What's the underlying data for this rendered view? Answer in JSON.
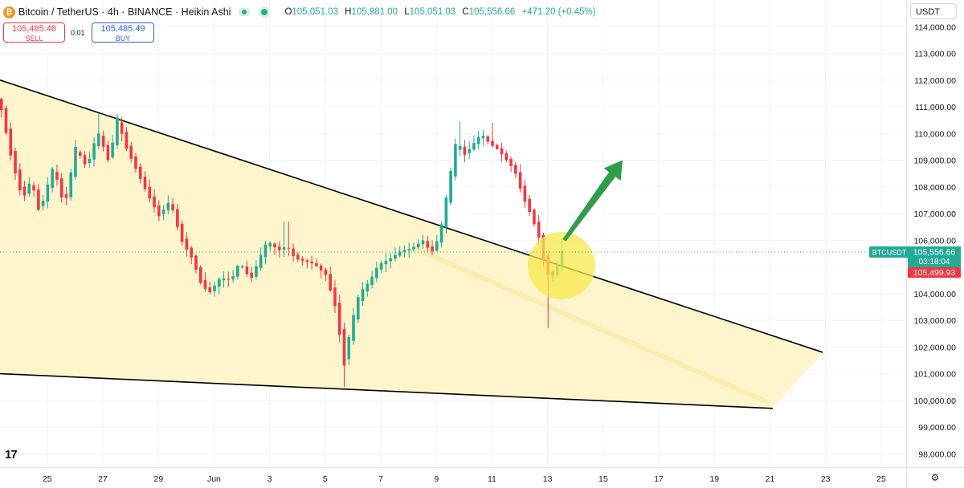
{
  "header": {
    "title": "Bitcoin / TetherUS · 4h · BINANCE · Heikin Ashi",
    "logo_glyph": "₿",
    "o_label": "O",
    "o_value": "105,051.03",
    "h_label": "H",
    "h_value": "105,981.00",
    "l_label": "L",
    "l_value": "105,051.03",
    "c_label": "C",
    "c_value": "105,556.66",
    "change": "+471.20 (+0.45%)"
  },
  "trade": {
    "sell_price": "105,485.48",
    "sell_label": "SELL",
    "spread": "0.01",
    "buy_price": "105,485.49",
    "buy_label": "BUY"
  },
  "currency_button": "USDT",
  "tv_logo_text": "17",
  "settings_icon": "gear-icon",
  "colors": {
    "up": "#22ab94",
    "down": "#f23645",
    "wedge_fill": "#fff3c4",
    "highlight": "#f7e84a",
    "arrow": "#2e9e4a",
    "trendline": "#000000"
  },
  "chart_data": {
    "type": "candlestick",
    "symbol": "BTCUSDT",
    "interval": "4h",
    "ylim": [
      97500,
      115000
    ],
    "y_ticks": [
      98000,
      99000,
      100000,
      101000,
      102000,
      103000,
      104000,
      105000,
      106000,
      107000,
      108000,
      109000,
      110000,
      111000,
      112000,
      113000,
      114000
    ],
    "y_tick_labels": [
      "98,000.00",
      "99,000.00",
      "100,000.00",
      "101,000.00",
      "102,000.00",
      "103,000.00",
      "104,000.00",
      "105,000.00",
      "106,000.00",
      "107,000.00",
      "108,000.00",
      "109,000.00",
      "110,000.00",
      "111,000.00",
      "112,000.00",
      "113,000.00",
      "114,000.00"
    ],
    "x_range_days": [
      23.3,
      25.9
    ],
    "x_ticks": [
      {
        "day": 25,
        "label": "25"
      },
      {
        "day": 27,
        "label": "27"
      },
      {
        "day": 29,
        "label": "29"
      },
      {
        "day": 31,
        "label": "Jun"
      },
      {
        "day": 33,
        "label": "3"
      },
      {
        "day": 35,
        "label": "5"
      },
      {
        "day": 37,
        "label": "7"
      },
      {
        "day": 39,
        "label": "9"
      },
      {
        "day": 41,
        "label": "11"
      },
      {
        "day": 43,
        "label": "13"
      },
      {
        "day": 45,
        "label": "15"
      },
      {
        "day": 47,
        "label": "17"
      },
      {
        "day": 49,
        "label": "19"
      },
      {
        "day": 51,
        "label": "21"
      },
      {
        "day": 53,
        "label": "23"
      },
      {
        "day": 55,
        "label": "25"
      }
    ],
    "keypoints": [
      [
        23.35,
        111300
      ],
      [
        23.8,
        109000
      ],
      [
        24.2,
        107500
      ],
      [
        24.5,
        108300
      ],
      [
        24.8,
        107000
      ],
      [
        25.3,
        108800
      ],
      [
        25.7,
        107200
      ],
      [
        26.1,
        109500
      ],
      [
        26.5,
        108700
      ],
      [
        26.9,
        110100
      ],
      [
        27.3,
        108900
      ],
      [
        27.6,
        110600
      ],
      [
        27.9,
        109500
      ],
      [
        28.3,
        108600
      ],
      [
        28.7,
        107700
      ],
      [
        29.1,
        106900
      ],
      [
        29.5,
        107500
      ],
      [
        29.9,
        106000
      ],
      [
        30.3,
        105300
      ],
      [
        30.6,
        104400
      ],
      [
        30.9,
        104000
      ],
      [
        31.3,
        104600
      ],
      [
        31.7,
        104500
      ],
      [
        32.0,
        105200
      ],
      [
        32.4,
        104500
      ],
      [
        32.7,
        105300
      ],
      [
        33.0,
        106000
      ],
      [
        33.4,
        105600
      ],
      [
        33.7,
        105800
      ],
      [
        34.0,
        105300
      ],
      [
        34.4,
        105200
      ],
      [
        34.7,
        105100
      ],
      [
        35.1,
        104700
      ],
      [
        35.5,
        103300
      ],
      [
        35.75,
        101200
      ],
      [
        36.0,
        102800
      ],
      [
        36.3,
        104000
      ],
      [
        36.7,
        104500
      ],
      [
        37.0,
        105100
      ],
      [
        37.4,
        105300
      ],
      [
        37.8,
        105600
      ],
      [
        38.2,
        105700
      ],
      [
        38.6,
        106000
      ],
      [
        38.9,
        105500
      ],
      [
        39.2,
        106200
      ],
      [
        39.5,
        108000
      ],
      [
        39.8,
        109800
      ],
      [
        40.1,
        109200
      ],
      [
        40.4,
        109600
      ],
      [
        40.7,
        110000
      ],
      [
        41.0,
        109600
      ],
      [
        41.3,
        109400
      ],
      [
        41.6,
        109000
      ],
      [
        41.9,
        108600
      ],
      [
        42.2,
        107600
      ],
      [
        42.5,
        106900
      ],
      [
        42.8,
        106000
      ],
      [
        43.0,
        104900
      ],
      [
        43.2,
        104500
      ],
      [
        43.4,
        105000
      ],
      [
        43.6,
        105600
      ]
    ],
    "wicks": [
      {
        "day": 26.9,
        "high": 110750
      },
      {
        "day": 33.6,
        "high": 106700
      },
      {
        "day": 35.75,
        "low": 100500
      },
      {
        "day": 39.9,
        "high": 110450
      },
      {
        "day": 41.0,
        "high": 110400
      },
      {
        "day": 43.05,
        "low": 102700
      },
      {
        "day": 43.6,
        "high": 106000
      }
    ],
    "trendlines": [
      {
        "from": [
          23.3,
          112000
        ],
        "to": [
          52.9,
          101800
        ]
      },
      {
        "from": [
          23.3,
          101000
        ],
        "to": [
          51.1,
          99700
        ]
      }
    ],
    "wedge_polygon": [
      [
        23.3,
        112000
      ],
      [
        52.9,
        101800
      ],
      [
        51.1,
        99700
      ],
      [
        23.3,
        101000
      ]
    ],
    "highlight_circle": {
      "day": 43.5,
      "price": 105050
    },
    "arrow": {
      "from": [
        43.6,
        106000
      ],
      "to": [
        45.7,
        109000
      ]
    },
    "last_price": {
      "label": "BTCUSDT",
      "value": "105,556.66",
      "countdown": "03:18:04",
      "price": 105556.66
    },
    "bid_price": {
      "value": "105,499.93",
      "price": 105499.93
    }
  }
}
